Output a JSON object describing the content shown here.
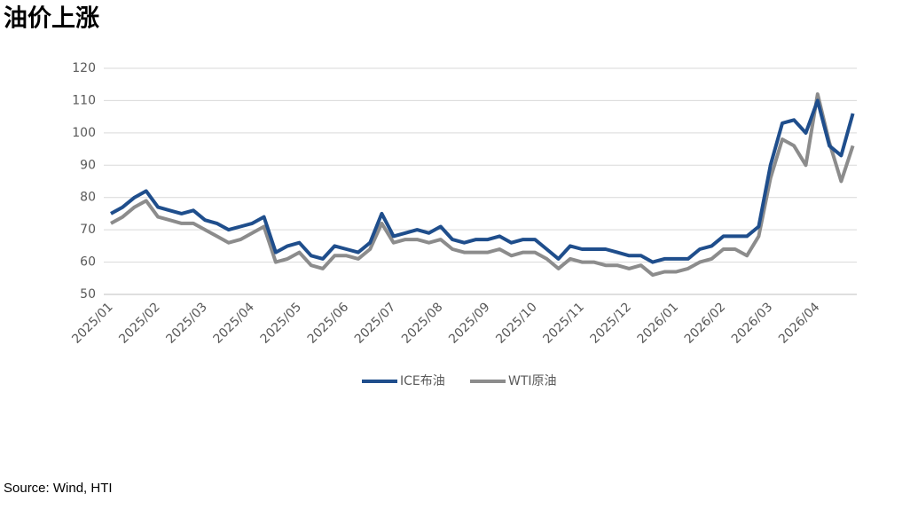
{
  "chart_data": {
    "type": "line",
    "title": "油价上涨",
    "source": "Source: Wind, HTI",
    "x": [
      "2025/01",
      null,
      null,
      null,
      "2025/02",
      null,
      null,
      null,
      "2025/03",
      null,
      null,
      null,
      "2025/04",
      null,
      null,
      null,
      "2025/05",
      null,
      null,
      null,
      "2025/06",
      null,
      null,
      null,
      "2025/07",
      null,
      null,
      null,
      "2025/08",
      null,
      null,
      null,
      "2025/09",
      null,
      null,
      null,
      "2025/10",
      null,
      null,
      null,
      "2025/11",
      null,
      null,
      null,
      "2025/12",
      null,
      null,
      null,
      "2026/01",
      null,
      null,
      null,
      "2026/02",
      null,
      null,
      null,
      "2026/03",
      null,
      null,
      null,
      "2026/04",
      null,
      null,
      null
    ],
    "series": [
      {
        "name": "ICE布油",
        "color": "#1f4e8c",
        "values": [
          75,
          77,
          80,
          82,
          77,
          76,
          75,
          76,
          73,
          72,
          70,
          71,
          72,
          74,
          63,
          65,
          66,
          62,
          61,
          65,
          64,
          63,
          66,
          75,
          68,
          69,
          70,
          69,
          71,
          67,
          66,
          67,
          67,
          68,
          66,
          67,
          67,
          64,
          61,
          65,
          64,
          64,
          64,
          63,
          62,
          62,
          60,
          61,
          61,
          61,
          64,
          65,
          68,
          68,
          68,
          71,
          90,
          103,
          104,
          100,
          110,
          96,
          93,
          106
        ]
      },
      {
        "name": "WTI原油",
        "color": "#8c8c8c",
        "values": [
          72,
          74,
          77,
          79,
          74,
          73,
          72,
          72,
          70,
          68,
          66,
          67,
          69,
          71,
          60,
          61,
          63,
          59,
          58,
          62,
          62,
          61,
          64,
          72,
          66,
          67,
          67,
          66,
          67,
          64,
          63,
          63,
          63,
          64,
          62,
          63,
          63,
          61,
          58,
          61,
          60,
          60,
          59,
          59,
          58,
          59,
          56,
          57,
          57,
          58,
          60,
          61,
          64,
          64,
          62,
          68,
          86,
          98,
          96,
          90,
          112,
          97,
          85,
          96
        ]
      }
    ],
    "ylim": [
      50,
      120
    ],
    "yticks": [
      50,
      60,
      70,
      80,
      90,
      100,
      110,
      120
    ],
    "grid": true,
    "legend": "bottom"
  }
}
